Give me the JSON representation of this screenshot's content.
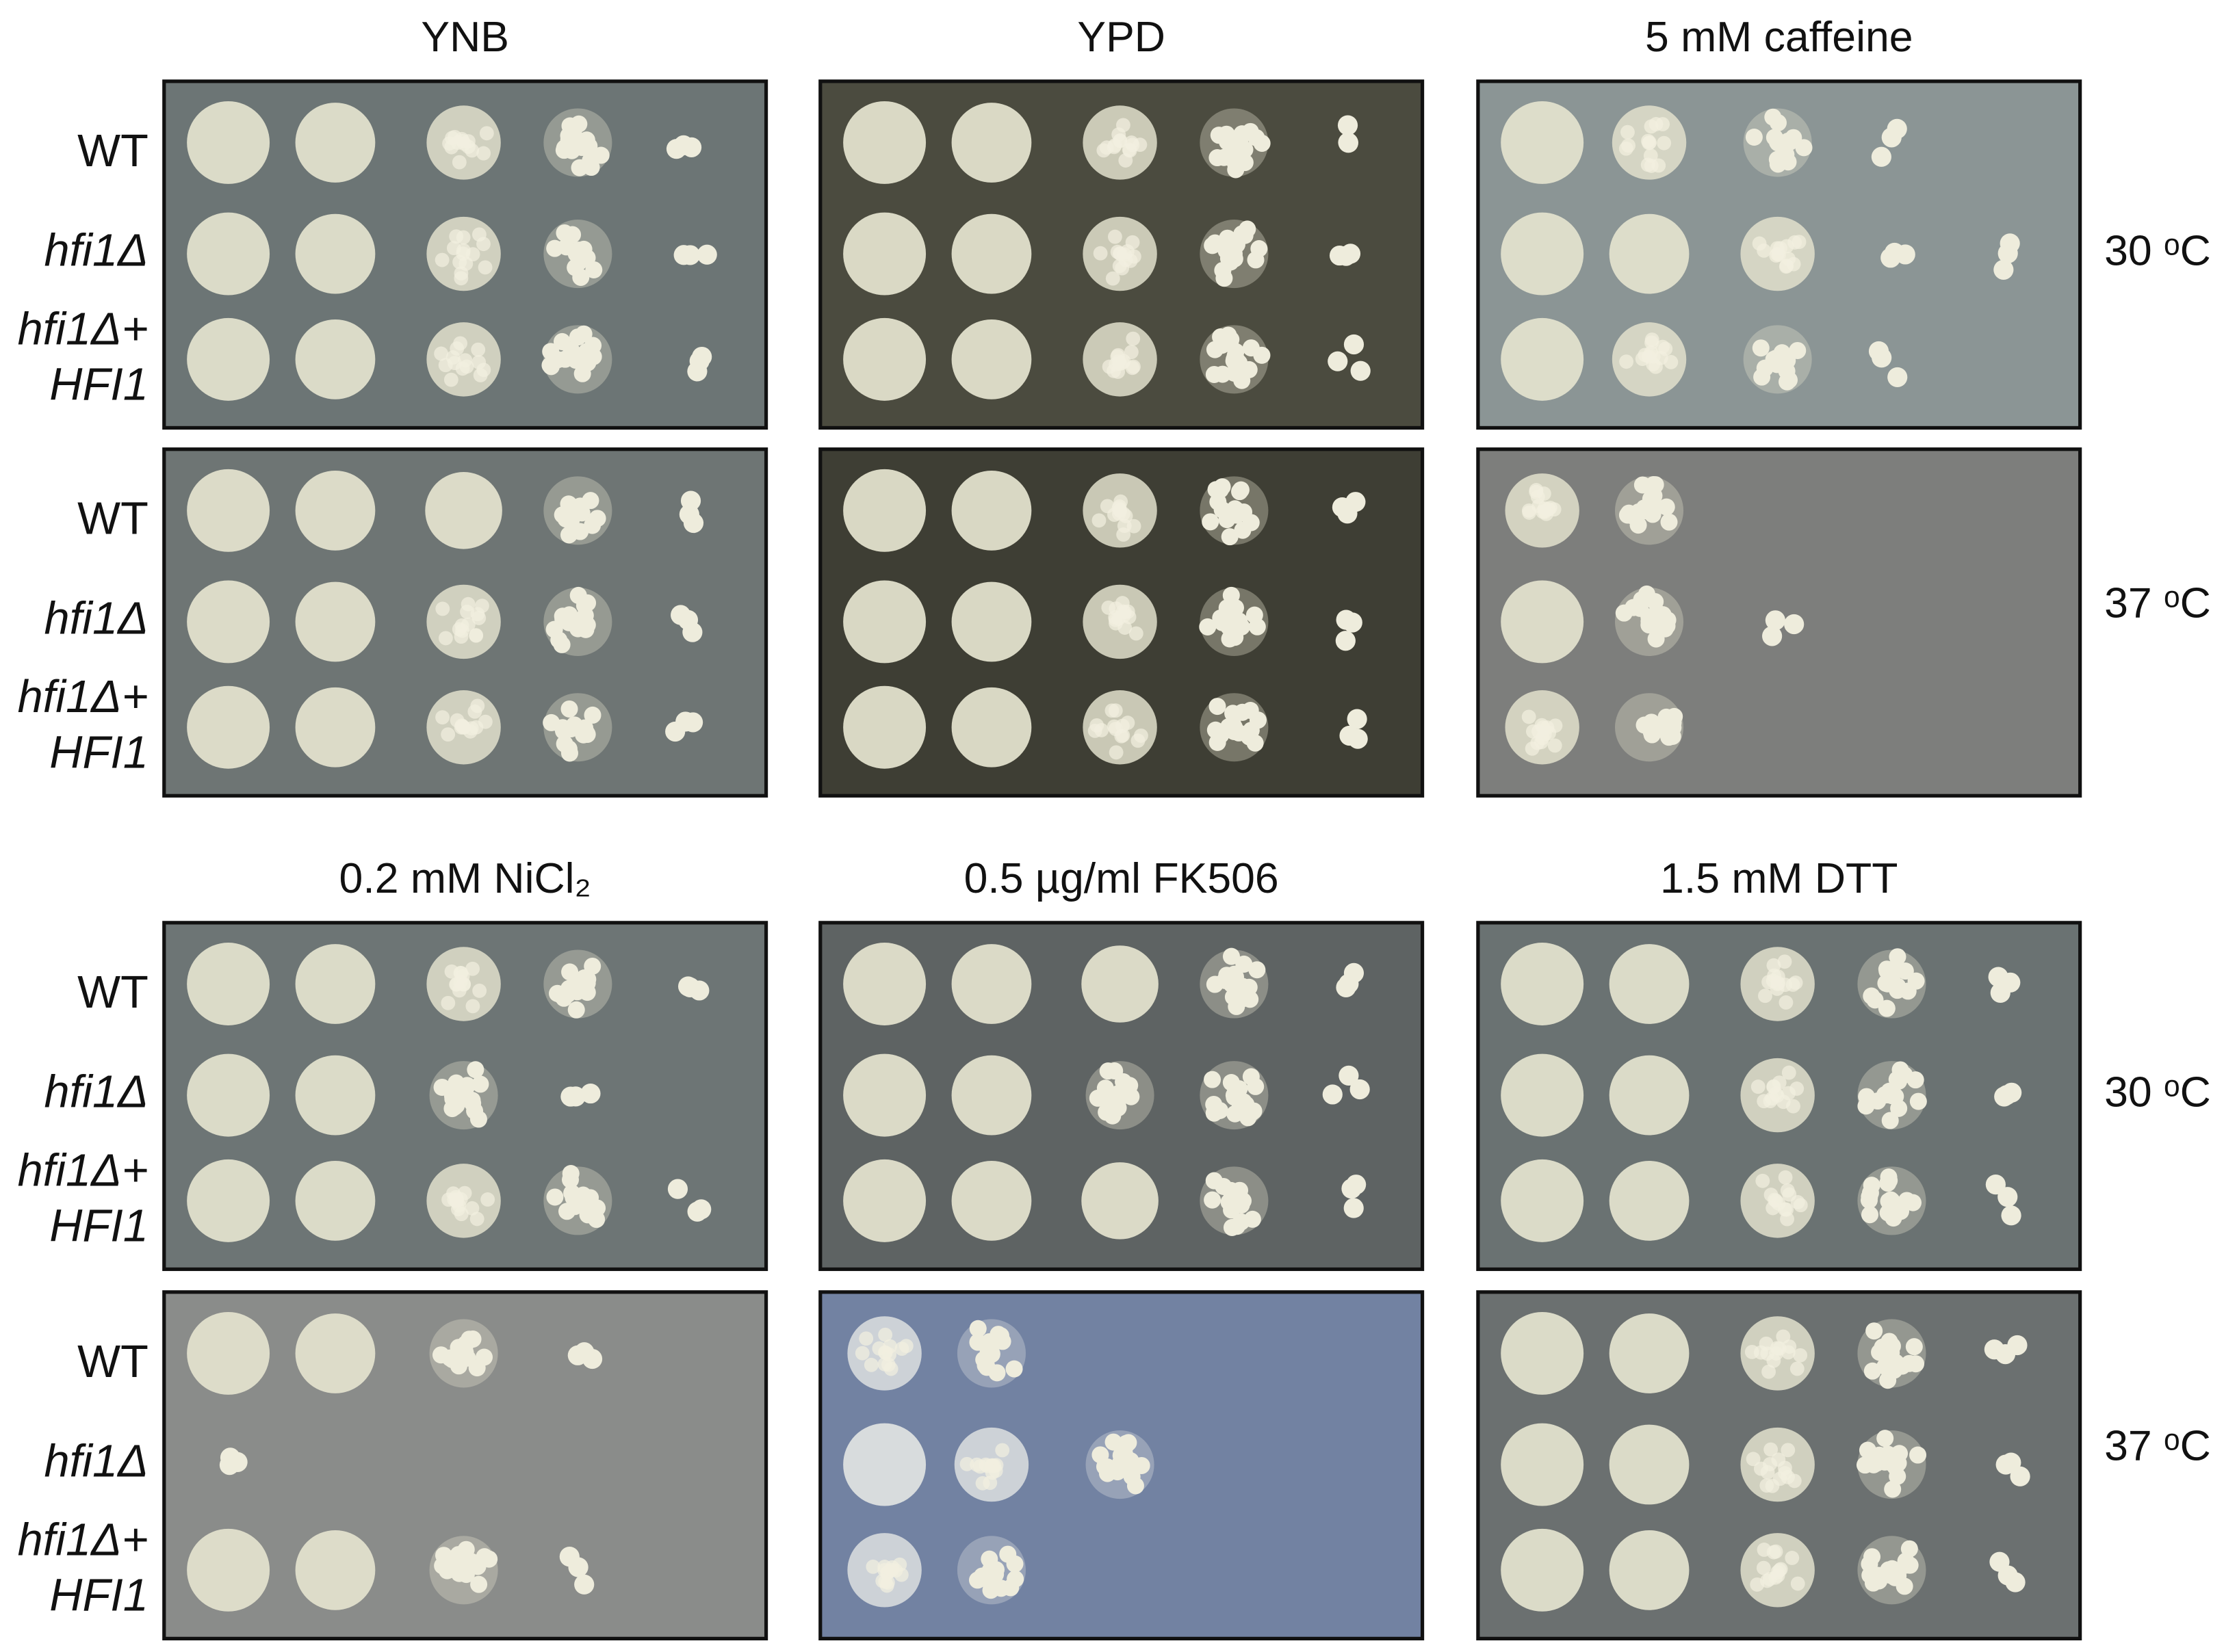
{
  "panels": [
    {
      "title": "YNB"
    },
    {
      "title": "YPD"
    },
    {
      "title": "5 mM caffeine"
    },
    {
      "title": "0.2 mM NiCl₂"
    },
    {
      "title": "0.5 µg/ml FK506"
    },
    {
      "title": "1.5 mM DTT"
    }
  ],
  "strains": [
    "WT",
    "hfi1Δ",
    "hfi1Δ+",
    "HFI1"
  ],
  "temperatures": [
    "30 ᵒC",
    "37 ᵒC"
  ]
}
